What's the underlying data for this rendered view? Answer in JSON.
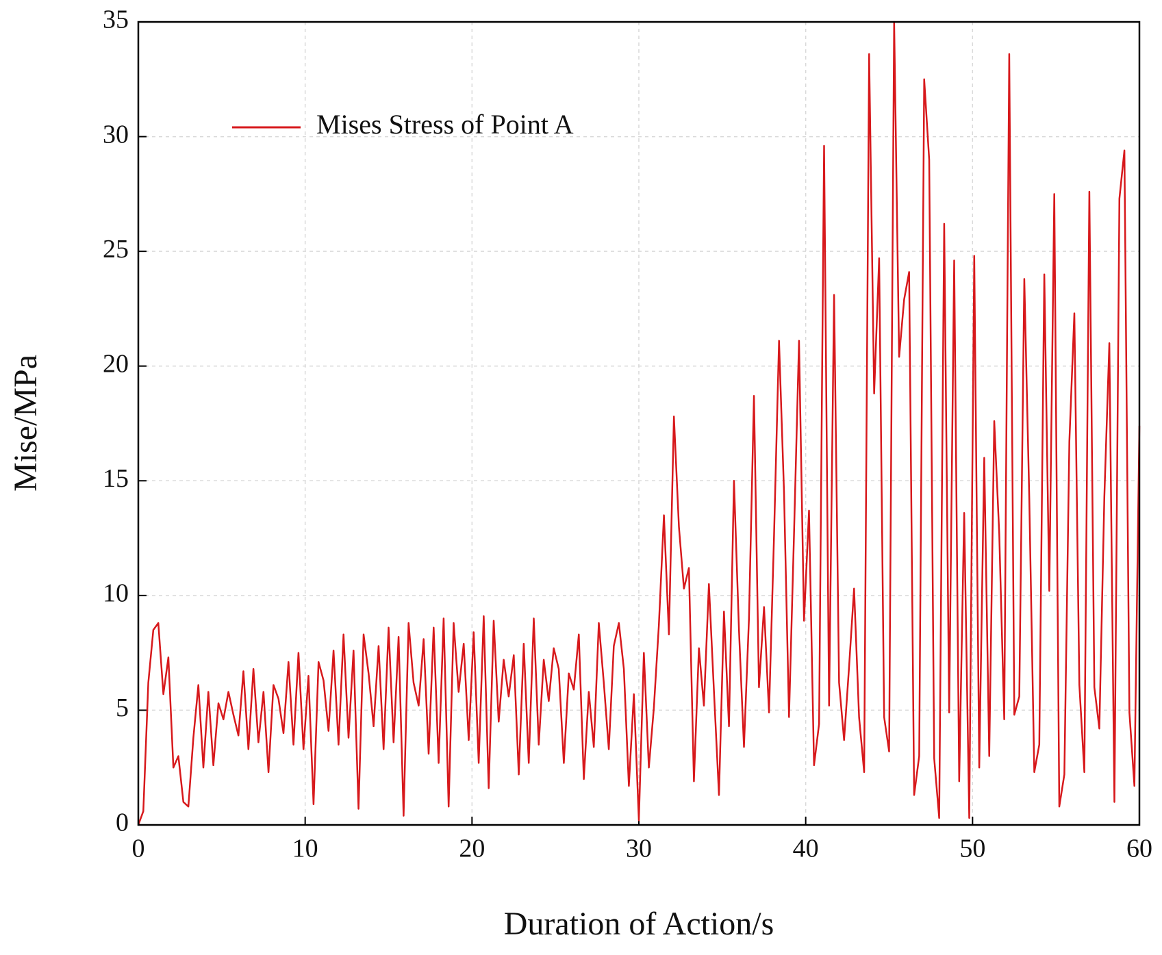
{
  "chart_data": {
    "type": "line",
    "xlabel": "Duration of Action/s",
    "ylabel": "Mise/MPa",
    "xlim": [
      0,
      60
    ],
    "xticks": [
      0,
      10,
      20,
      30,
      40,
      50,
      60
    ],
    "ylim": [
      0,
      35
    ],
    "yticks": [
      0,
      5,
      10,
      15,
      20,
      25,
      30,
      35
    ],
    "grid": true,
    "legend": "upper left",
    "x": [
      0,
      0.3,
      0.6,
      0.9,
      1.2,
      1.5,
      1.8,
      2.1,
      2.4,
      2.7,
      3,
      3.3,
      3.6,
      3.9,
      4.2,
      4.5,
      4.8,
      5.1,
      5.4,
      5.7,
      6,
      6.3,
      6.6,
      6.9,
      7.2,
      7.5,
      7.8,
      8.1,
      8.4,
      8.7,
      9,
      9.3,
      9.6,
      9.9,
      10.2,
      10.5,
      10.8,
      11.1,
      11.4,
      11.7,
      12,
      12.3,
      12.6,
      12.9,
      13.2,
      13.5,
      13.8,
      14.1,
      14.4,
      14.7,
      15,
      15.3,
      15.6,
      15.9,
      16.2,
      16.5,
      16.8,
      17.1,
      17.4,
      17.7,
      18,
      18.3,
      18.6,
      18.9,
      19.2,
      19.5,
      19.8,
      20.1,
      20.4,
      20.7,
      21,
      21.3,
      21.6,
      21.9,
      22.2,
      22.5,
      22.8,
      23.1,
      23.4,
      23.7,
      24,
      24.3,
      24.6,
      24.9,
      25.2,
      25.5,
      25.8,
      26.1,
      26.4,
      26.7,
      27,
      27.3,
      27.6,
      27.9,
      28.2,
      28.5,
      28.8,
      29.1,
      29.4,
      29.7,
      30,
      30.3,
      30.6,
      30.9,
      31.2,
      31.5,
      31.8,
      32.1,
      32.4,
      32.7,
      33,
      33.3,
      33.6,
      33.9,
      34.2,
      34.5,
      34.8,
      35.1,
      35.4,
      35.7,
      36,
      36.3,
      36.6,
      36.9,
      37.2,
      37.5,
      37.8,
      38.1,
      38.4,
      38.7,
      39,
      39.3,
      39.6,
      39.9,
      40.2,
      40.5,
      40.8,
      41.1,
      41.4,
      41.7,
      42,
      42.3,
      42.6,
      42.9,
      43.2,
      43.5,
      43.8,
      44.1,
      44.4,
      44.7,
      45,
      45.3,
      45.6,
      45.9,
      46.2,
      46.5,
      46.8,
      47.1,
      47.4,
      47.7,
      48,
      48.3,
      48.6,
      48.9,
      49.2,
      49.5,
      49.8,
      50.1,
      50.4,
      50.7,
      51,
      51.3,
      51.6,
      51.9,
      52.2,
      52.5,
      52.8,
      53.1,
      53.4,
      53.7,
      54,
      54.3,
      54.6,
      54.9,
      55.2,
      55.5,
      55.8,
      56.1,
      56.4,
      56.7,
      57,
      57.3,
      57.6,
      57.9,
      58.2,
      58.5,
      58.8,
      59.1,
      59.4,
      59.7,
      60
    ],
    "series": [
      {
        "name": "Mises Stress of Point A",
        "color": "#d7191c",
        "values": [
          0,
          0.6,
          6.2,
          8.5,
          8.8,
          5.7,
          7.3,
          2.5,
          3.0,
          1.0,
          0.8,
          3.8,
          6.1,
          2.5,
          5.8,
          2.6,
          5.3,
          4.6,
          5.8,
          4.8,
          3.9,
          6.7,
          3.3,
          6.8,
          3.6,
          5.8,
          2.3,
          6.1,
          5.5,
          4.0,
          7.1,
          3.5,
          7.5,
          3.3,
          6.5,
          0.9,
          7.1,
          6.3,
          4.1,
          7.6,
          3.5,
          8.3,
          3.8,
          7.6,
          0.7,
          8.3,
          6.6,
          4.3,
          7.8,
          3.3,
          8.6,
          3.6,
          8.2,
          0.4,
          8.8,
          6.2,
          5.2,
          8.1,
          3.1,
          8.6,
          2.7,
          9.0,
          0.8,
          8.8,
          5.8,
          7.9,
          3.7,
          8.4,
          2.7,
          9.1,
          1.6,
          8.9,
          4.5,
          7.2,
          5.6,
          7.4,
          2.2,
          7.9,
          2.7,
          9.0,
          3.5,
          7.2,
          5.4,
          7.7,
          6.8,
          2.7,
          6.6,
          5.9,
          8.3,
          2.0,
          5.8,
          3.4,
          8.8,
          6.2,
          3.3,
          7.8,
          8.8,
          6.8,
          1.7,
          5.7,
          0.2,
          7.5,
          2.5,
          5.1,
          8.7,
          13.5,
          8.3,
          17.8,
          13.0,
          10.3,
          11.2,
          1.9,
          7.7,
          5.2,
          10.5,
          5.8,
          1.3,
          9.3,
          4.3,
          15.0,
          8.5,
          3.4,
          9.0,
          18.7,
          6.0,
          9.5,
          4.9,
          12.6,
          21.1,
          14.5,
          4.7,
          12.7,
          21.1,
          8.9,
          13.7,
          2.6,
          4.4,
          29.6,
          5.2,
          23.1,
          6.2,
          3.7,
          6.9,
          10.3,
          4.7,
          2.3,
          33.6,
          18.8,
          24.7,
          4.7,
          3.2,
          35,
          20.4,
          22.9,
          24.1,
          1.3,
          3.0,
          32.5,
          29.0,
          2.9,
          0.3,
          26.2,
          4.9,
          24.6,
          1.9,
          13.6,
          0.3,
          24.8,
          2.5,
          16.0,
          3.0,
          17.6,
          12.7,
          4.6,
          33.6,
          4.8,
          5.6,
          23.8,
          14.2,
          2.3,
          3.5,
          24.0,
          10.2,
          27.5,
          0.8,
          2.2,
          16.7,
          22.3,
          6.1,
          2.3,
          27.6,
          6.0,
          4.2,
          14.3,
          21.0,
          1.0,
          27.3,
          29.4,
          4.9,
          1.7,
          17.4
        ]
      }
    ]
  }
}
